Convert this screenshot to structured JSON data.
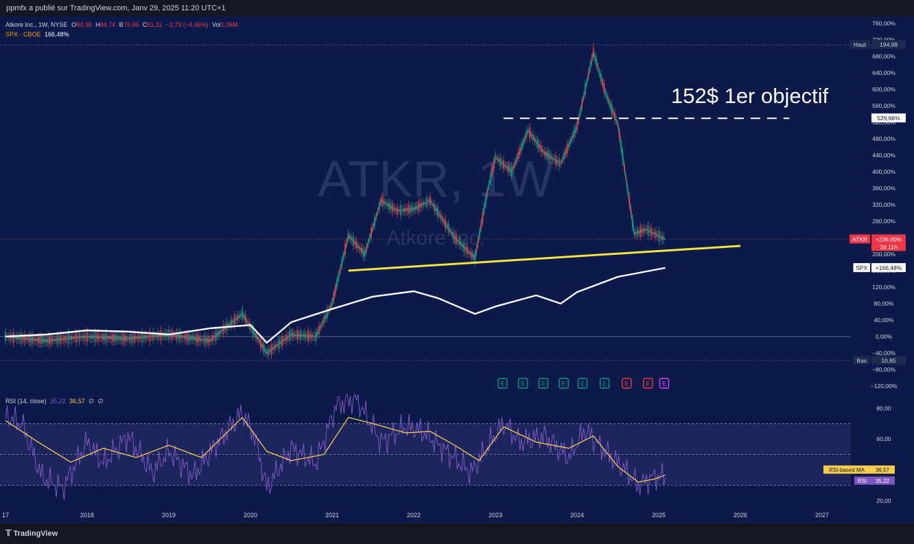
{
  "header": {
    "publish_line": "ppmfx a publié sur TradingView.com, Janv 29, 2025 11:20 UTC+1"
  },
  "legend": {
    "symbol": "Atkore Inc., 1W, NYSE",
    "o_label": "O",
    "o_value": "84,38",
    "h_label": "H",
    "h_value": "84,74",
    "b_label": "B",
    "b_value": "79,96",
    "c_label": "C",
    "c_value": "81,11",
    "change": "−3,79 (−4,46%)",
    "vol_label": "Vol",
    "vol_value": "1,06M",
    "compare_symbol": "SPX · CBOE",
    "compare_value": "166,48%"
  },
  "watermark": {
    "ticker": "ATKR, 1W",
    "name": "Atkore Inc."
  },
  "annotation": {
    "text": "152$ 1er objectif"
  },
  "price_tags": {
    "haut_label": "Haut",
    "haut_value": "194,98",
    "target_value": "529,66%",
    "atkr_label": "ATKR",
    "atkr_value": "+236,00%",
    "atkr_countdown": "2d 11h",
    "spx_label": "SPX",
    "spx_value": "+166,48%",
    "bas_label": "Bas",
    "bas_value": "10,85"
  },
  "earnings_markers": [
    "E",
    "E",
    "E",
    "E",
    "E",
    "E",
    "E",
    "E",
    "E"
  ],
  "rsi": {
    "title": "RSI (14, close)",
    "value1": "35,22",
    "value2": "36,57",
    "ex1": "∅",
    "ex2": "∅",
    "ma_tag_label": "RSI-based MA",
    "ma_tag_value": "36,57",
    "rsi_tag_label": "RSI",
    "rsi_tag_value": "35,22"
  },
  "footer": {
    "brand": "TradingView"
  },
  "chart_data": [
    {
      "type": "line",
      "title": "Atkore Inc., 1W, NYSE",
      "x_ticks": [
        "17",
        "2018",
        "2019",
        "2020",
        "2021",
        "2022",
        "2023",
        "2024",
        "2025",
        "2026",
        "2027"
      ],
      "y_ticks": [
        "760,00%",
        "720,00%",
        "680,00%",
        "640,00%",
        "600,00%",
        "560,00%",
        "520,00%",
        "480,00%",
        "440,00%",
        "400,00%",
        "360,00%",
        "320,00%",
        "280,00%",
        "240,00%",
        "200,00%",
        "160,00%",
        "120,00%",
        "80,00%",
        "40,00%",
        "0,00%",
        "−40,00%",
        "−80,00%",
        "−120,00%"
      ],
      "ylim": [
        -120,
        760
      ],
      "series": [
        {
          "name": "ATKR",
          "color": "#f23645",
          "x": [
            2017.0,
            2017.5,
            2018.0,
            2018.5,
            2019.0,
            2019.5,
            2019.9,
            2020.2,
            2020.5,
            2020.8,
            2021.0,
            2021.2,
            2021.4,
            2021.6,
            2021.8,
            2022.0,
            2022.2,
            2022.5,
            2022.75,
            2022.9,
            2023.0,
            2023.2,
            2023.4,
            2023.6,
            2023.8,
            2024.0,
            2024.2,
            2024.35,
            2024.5,
            2024.7,
            2024.85,
            2025.08
          ],
          "y": [
            0,
            -10,
            0,
            -5,
            5,
            -10,
            55,
            -40,
            5,
            0,
            80,
            245,
            200,
            330,
            305,
            310,
            330,
            240,
            190,
            350,
            435,
            400,
            500,
            445,
            420,
            510,
            690,
            590,
            515,
            250,
            260,
            236
          ]
        },
        {
          "name": "SPX",
          "color": "#ffffff",
          "x": [
            2017.0,
            2017.5,
            2018.0,
            2018.5,
            2019.0,
            2019.5,
            2020.0,
            2020.2,
            2020.5,
            2021.0,
            2021.5,
            2022.0,
            2022.3,
            2022.75,
            2023.0,
            2023.5,
            2023.8,
            2024.0,
            2024.5,
            2024.9,
            2025.08
          ],
          "y": [
            0,
            5,
            15,
            12,
            5,
            20,
            28,
            -15,
            35,
            67,
            97,
            110,
            93,
            55,
            73,
            100,
            80,
            108,
            145,
            160,
            166.48
          ]
        },
        {
          "name": "Support",
          "color": "#f5e538",
          "x": [
            2021.2,
            2026.0
          ],
          "y": [
            160,
            220
          ]
        },
        {
          "name": "Target",
          "color": "#ffffff",
          "x": [
            2023.1,
            2026.6
          ],
          "y": [
            529.66,
            529.66
          ]
        }
      ]
    },
    {
      "type": "line",
      "title": "RSI (14, close)",
      "x_ticks": [
        "17",
        "2018",
        "2019",
        "2020",
        "2021",
        "2022",
        "2023",
        "2024",
        "2025",
        "2026",
        "2027"
      ],
      "y_ticks": [
        "80,00",
        "60,00",
        "40,00",
        "20,00"
      ],
      "ylim": [
        15,
        90
      ],
      "series": [
        {
          "name": "RSI",
          "color": "#7e57c2",
          "x": [
            2017.0,
            2017.2,
            2017.45,
            2017.7,
            2018.0,
            2018.2,
            2018.5,
            2018.8,
            2019.0,
            2019.3,
            2019.6,
            2019.9,
            2020.05,
            2020.2,
            2020.5,
            2020.8,
            2021.05,
            2021.3,
            2021.6,
            2021.9,
            2022.1,
            2022.4,
            2022.7,
            2022.9,
            2023.1,
            2023.3,
            2023.6,
            2023.9,
            2024.1,
            2024.3,
            2024.55,
            2024.75,
            2024.95,
            2025.08
          ],
          "y": [
            75,
            70,
            35,
            28,
            58,
            44,
            62,
            38,
            52,
            36,
            58,
            77,
            62,
            28,
            54,
            44,
            82,
            86,
            58,
            68,
            65,
            52,
            38,
            55,
            70,
            58,
            62,
            48,
            66,
            54,
            42,
            30,
            36,
            35.22
          ]
        },
        {
          "name": "RSI-based MA",
          "color": "#f7cd4b",
          "x": [
            2017.0,
            2017.4,
            2017.8,
            2018.2,
            2018.6,
            2019.0,
            2019.4,
            2019.9,
            2020.2,
            2020.5,
            2020.9,
            2021.2,
            2021.5,
            2021.9,
            2022.2,
            2022.5,
            2022.8,
            2023.1,
            2023.5,
            2023.9,
            2024.2,
            2024.5,
            2024.75,
            2024.95,
            2025.08
          ],
          "y": [
            72,
            58,
            45,
            54,
            48,
            56,
            48,
            74,
            52,
            46,
            50,
            74,
            70,
            64,
            65,
            56,
            46,
            68,
            58,
            54,
            62,
            42,
            32,
            34,
            36.57
          ]
        }
      ]
    }
  ]
}
